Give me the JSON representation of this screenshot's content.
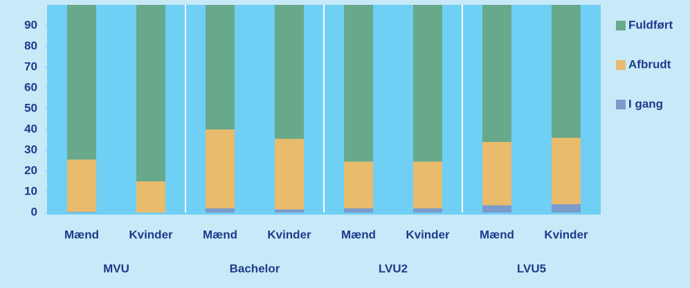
{
  "chart_data": {
    "type": "stacked_bar",
    "categories": [
      "Mænd",
      "Kvinder",
      "Mænd",
      "Kvinder",
      "Mænd",
      "Kvinder",
      "Mænd",
      "Kvinder"
    ],
    "groups": [
      "MVU",
      "Bachelor",
      "LVU2",
      "LVU5"
    ],
    "series": [
      {
        "name": "I gang",
        "color": "#7b9bcb",
        "values": [
          0.3,
          0,
          2,
          1.5,
          2,
          2,
          3.5,
          4
        ]
      },
      {
        "name": "Afbrudt",
        "color": "#e9bb6c",
        "values": [
          25.2,
          15,
          38,
          34,
          22.5,
          22.5,
          30.5,
          32
        ]
      },
      {
        "name": "Fuldført",
        "color": "#67a98a",
        "values": [
          74.5,
          85,
          60,
          64.5,
          75.5,
          75.5,
          66,
          64
        ]
      }
    ],
    "ylim": [
      0,
      100
    ],
    "yticks": [
      0,
      10,
      20,
      30,
      40,
      50,
      60,
      70,
      80,
      90
    ],
    "legend": "right"
  }
}
